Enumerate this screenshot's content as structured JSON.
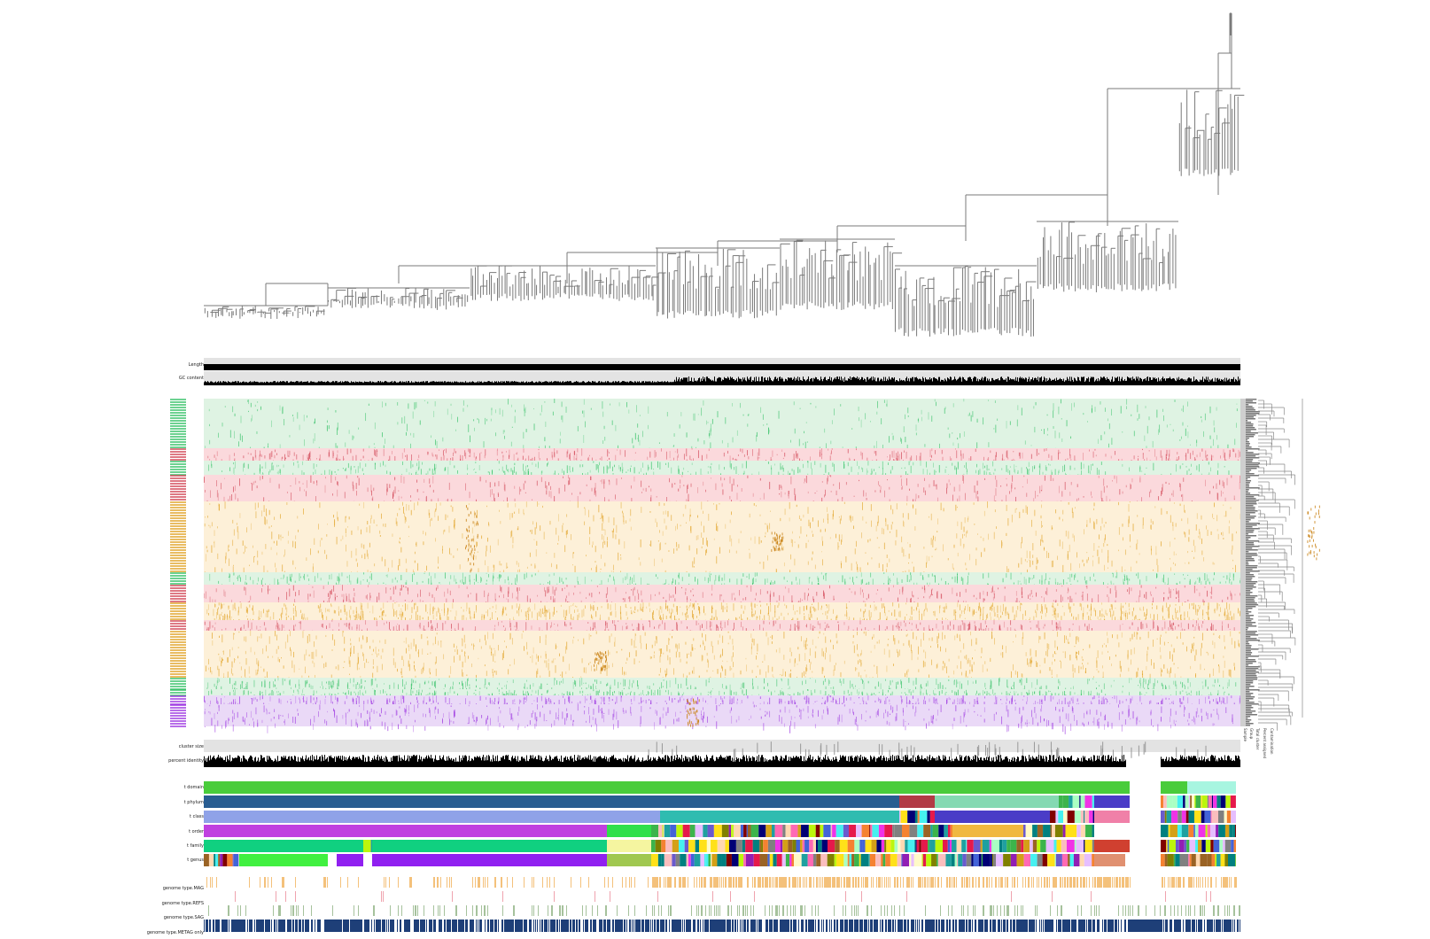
{
  "tracks": {
    "length_label": "Length",
    "gc_label": "GC content",
    "cluster_size_label": "cluster size",
    "percent_identity_label": "percent identity"
  },
  "taxonomy": {
    "labels": [
      "t domain",
      "t phylum",
      "t class",
      "t order",
      "t family",
      "t genus"
    ],
    "genome_types": [
      "genome type.MAG",
      "genome type.REFS",
      "genome type.SAG",
      "genome type.METAG only"
    ]
  },
  "colors": {
    "tree": "#7a7a7a",
    "green_band": "#dff3e3",
    "red_band": "#fbd9dc",
    "orange_band": "#fdf0d8",
    "purple_band": "#ead9f7",
    "green_mark": "#2fbf62",
    "red_mark": "#d04050",
    "orange_mark": "#e0a020",
    "purple_mark": "#9a30e0",
    "mag": "#f1b25a",
    "refs": "#e87c8c",
    "sag": "#6a9a5a",
    "metag": "#1e3f78"
  },
  "side_labels": [
    "Sample",
    "Group",
    "Total cluster",
    "Percent assigned",
    "Contamination"
  ]
}
